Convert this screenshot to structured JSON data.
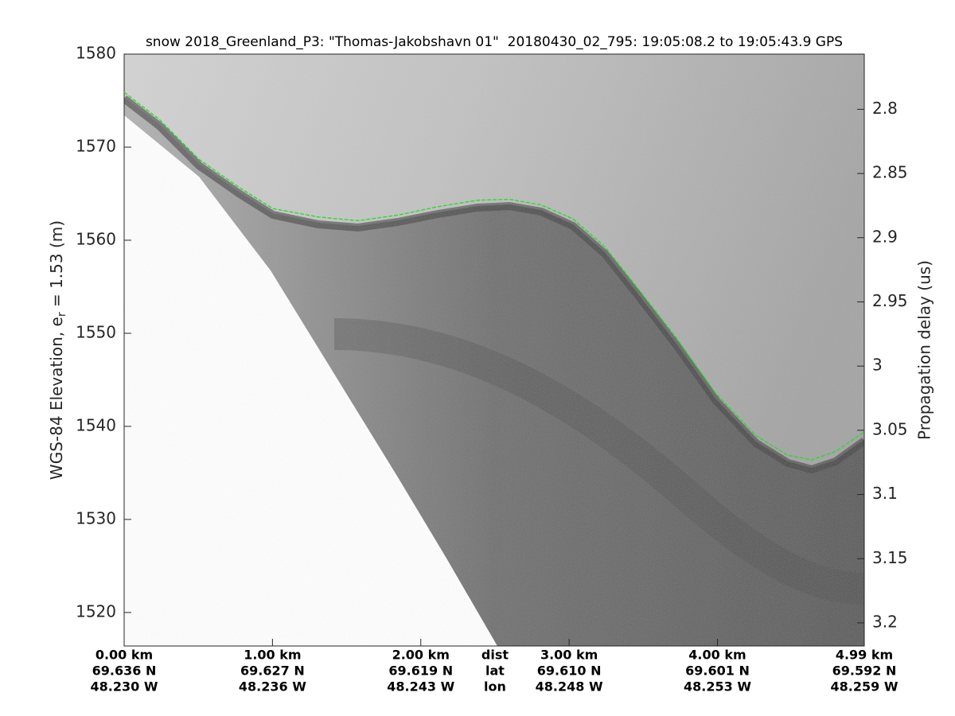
{
  "chart_data": {
    "type": "line",
    "title": "snow 2018_Greenland_P3: \"Thomas-Jakobshavn 01\"  20180430_02_795: 19:05:08.2 to 19:05:43.9 GPS",
    "ylabel": "WGS-84 Elevation, e",
    "ylabel_sub": "r",
    "ylabel_tail": " = 1.53 (m)",
    "y2label": "Propagation delay (us)",
    "x": [
      0,
      0.236,
      0.504,
      0.773,
      1.003,
      1.309,
      1.577,
      1.845,
      2.114,
      2.382,
      2.597,
      2.811,
      3.026,
      3.24,
      3.455,
      3.723,
      3.991,
      4.26,
      4.474,
      4.635,
      4.796,
      4.99
    ],
    "values": [
      1575.9,
      1573.0,
      1568.7,
      1565.7,
      1563.4,
      1562.5,
      1562.1,
      1562.7,
      1563.6,
      1564.3,
      1564.4,
      1563.8,
      1562.3,
      1559.3,
      1555.0,
      1549.5,
      1543.5,
      1539.0,
      1536.9,
      1536.4,
      1537.3,
      1539.4
    ],
    "color": "#22dd22",
    "xlim": [
      0,
      4.99
    ],
    "ylim": [
      1516.4,
      1580
    ],
    "y2lim": [
      3.218,
      2.757
    ],
    "yticks": [
      1520,
      1530,
      1540,
      1550,
      1560,
      1570,
      1580
    ],
    "y2ticks": [
      2.8,
      2.85,
      2.9,
      2.95,
      3,
      3.05,
      3.1,
      3.15,
      3.2
    ],
    "xticks": [
      {
        "value": 0,
        "label": "0.00 km"
      },
      {
        "value": 1,
        "label": "1.00 km"
      },
      {
        "value": 2,
        "label": "2.00 km"
      },
      {
        "value": 3,
        "label": "3.00 km"
      },
      {
        "value": 4,
        "label": "4.00 km"
      },
      {
        "value": 4.99,
        "label": "4.99 km"
      }
    ],
    "xtick_lat": [
      "69.636 N",
      "69.627 N",
      "69.619 N",
      "69.610 N",
      "69.601 N",
      "69.592 N"
    ],
    "xtick_lon": [
      "48.230 W",
      "48.236 W",
      "48.243 W",
      "48.248 W",
      "48.253 W",
      "48.259 W"
    ],
    "xtick_row_labels": [
      "dist",
      "lat",
      "lon"
    ]
  }
}
